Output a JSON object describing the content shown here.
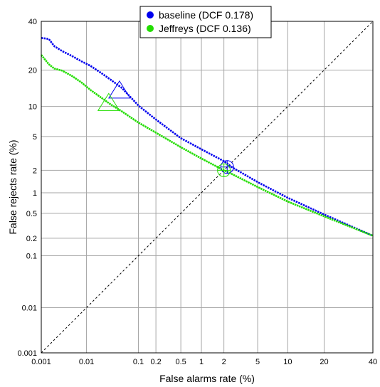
{
  "chart_data": {
    "type": "line",
    "title": "",
    "xlabel": "False alarms rate (%)",
    "ylabel": "False rejects rate (%)",
    "scale": "probit (normal deviate)",
    "xlim": [
      0.001,
      40
    ],
    "ylim": [
      0.001,
      40
    ],
    "grid": true,
    "legend_position": "top-center",
    "x_ticks": [
      {
        "value": 0.001,
        "label": "0.001"
      },
      {
        "value": 0.01,
        "label": "0.01"
      },
      {
        "value": 0.1,
        "label": "0.1"
      },
      {
        "value": 0.2,
        "label": "0.2"
      },
      {
        "value": 0.5,
        "label": "0.5"
      },
      {
        "value": 1,
        "label": "1"
      },
      {
        "value": 2,
        "label": "2"
      },
      {
        "value": 5,
        "label": "5"
      },
      {
        "value": 10,
        "label": "10"
      },
      {
        "value": 20,
        "label": "20"
      },
      {
        "value": 40,
        "label": "40"
      }
    ],
    "y_ticks": [
      {
        "value": 0.001,
        "label": "0.001"
      },
      {
        "value": 0.01,
        "label": "0.01"
      },
      {
        "value": 0.1,
        "label": "0.1"
      },
      {
        "value": 0.2,
        "label": "0.2"
      },
      {
        "value": 0.5,
        "label": "0.5"
      },
      {
        "value": 1,
        "label": "1"
      },
      {
        "value": 2,
        "label": "2"
      },
      {
        "value": 5,
        "label": "5"
      },
      {
        "value": 10,
        "label": "10"
      },
      {
        "value": 20,
        "label": "20"
      },
      {
        "value": 40,
        "label": "40"
      }
    ],
    "series": [
      {
        "name": "baseline (DCF 0.178)",
        "color": "#0000ee",
        "x": [
          0.001,
          0.0015,
          0.002,
          0.003,
          0.005,
          0.008,
          0.012,
          0.02,
          0.03,
          0.05,
          0.08,
          0.1,
          0.2,
          0.5,
          1,
          2,
          2.5,
          5,
          10,
          20,
          40
        ],
        "y": [
          32.5,
          32,
          29,
          27,
          25,
          23,
          21.5,
          19,
          17,
          14.5,
          11.5,
          10.2,
          7.5,
          4.8,
          3.6,
          2.6,
          2.2,
          1.4,
          0.85,
          0.48,
          0.22
        ]
      },
      {
        "name": "Jeffreys (DCF 0.136)",
        "color": "#22dd00",
        "x": [
          0.001,
          0.0015,
          0.002,
          0.003,
          0.005,
          0.008,
          0.012,
          0.02,
          0.03,
          0.05,
          0.08,
          0.1,
          0.2,
          0.5,
          1,
          2,
          2.5,
          5,
          10,
          20,
          40
        ],
        "y": [
          25.5,
          22,
          20.5,
          19.8,
          18,
          16,
          14,
          12,
          10.5,
          9,
          7.6,
          7,
          5.5,
          3.8,
          2.8,
          2.0,
          1.8,
          1.2,
          0.75,
          0.45,
          0.22
        ]
      }
    ],
    "markers": [
      {
        "series": "baseline (DCF 0.178)",
        "shape": "triangle",
        "x": 0.045,
        "y": 13.5
      },
      {
        "series": "baseline (DCF 0.178)",
        "shape": "circle",
        "x": 2.2,
        "y": 2.2
      },
      {
        "series": "Jeffreys (DCF 0.136)",
        "shape": "triangle",
        "x": 0.028,
        "y": 10.5
      },
      {
        "series": "Jeffreys (DCF 0.136)",
        "shape": "circle",
        "x": 2.0,
        "y": 2.0
      }
    ],
    "diagonal_reference": "x = y (dashed)"
  }
}
